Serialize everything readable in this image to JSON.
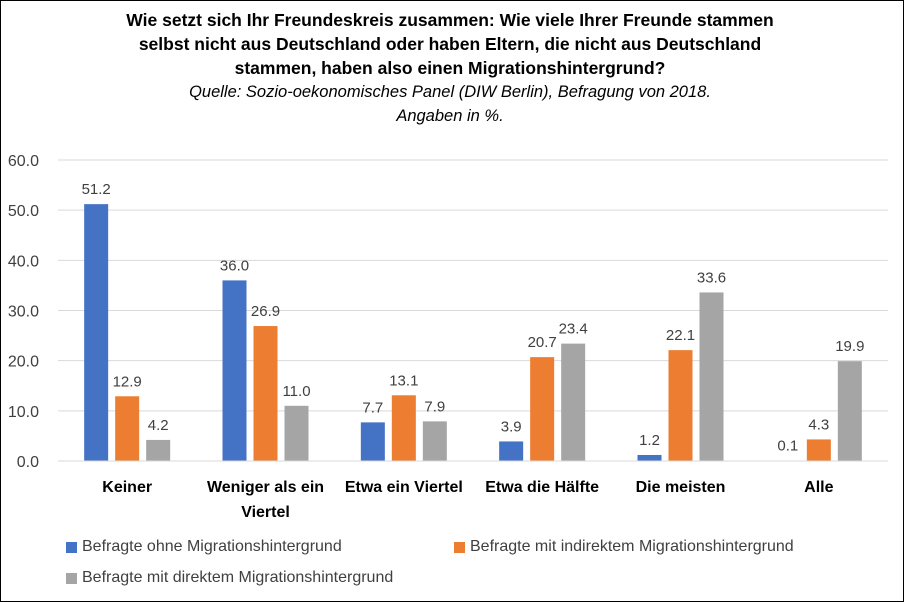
{
  "chart_data": {
    "type": "bar",
    "title": "Wie setzt sich Ihr Freundeskreis zusammen: Wie viele Ihrer Freunde stammen selbst nicht aus Deutschland oder haben Eltern, die nicht aus Deutschland stammen, haben also einen Migrationshintergrund?",
    "subtitle": "Quelle: Sozio-oekonomisches Panel (DIW Berlin), Befragung von 2018. Angaben in %.",
    "title_lines": [
      "Wie setzt sich Ihr Freundeskreis zusammen: Wie viele Ihrer Freunde stammen",
      "selbst nicht aus Deutschland oder haben Eltern, die nicht aus Deutschland",
      "stammen, haben also einen Migrationshintergrund?"
    ],
    "subtitle_lines": [
      "Quelle: Sozio-oekonomisches Panel (DIW Berlin), Befragung von 2018.",
      "Angaben in %."
    ],
    "categories": [
      "Keiner",
      "Weniger als ein Viertel",
      "Etwa ein Viertel",
      "Etwa die Hälfte",
      "Die meisten",
      "Alle"
    ],
    "category_label_lines": [
      [
        "Keiner"
      ],
      [
        "Weniger als ein",
        "Viertel"
      ],
      [
        "Etwa ein Viertel"
      ],
      [
        "Etwa die Hälfte"
      ],
      [
        "Die meisten"
      ],
      [
        "Alle"
      ]
    ],
    "series": [
      {
        "name": "Befragte ohne Migrationshintergrund",
        "color": "#4472C4",
        "values": [
          51.2,
          36.0,
          7.7,
          3.9,
          1.2,
          0.1
        ]
      },
      {
        "name": "Befragte mit indirektem Migrationshintergrund",
        "color": "#ED7D31",
        "values": [
          12.9,
          26.9,
          13.1,
          20.7,
          22.1,
          4.3
        ]
      },
      {
        "name": "Befragte mit direktem Migrationshintergrund",
        "color": "#A5A5A5",
        "values": [
          4.2,
          11.0,
          7.9,
          23.4,
          33.6,
          19.9
        ]
      }
    ],
    "ylim": [
      0,
      60
    ],
    "yticks": [
      "0.0",
      "10.0",
      "20.0",
      "30.0",
      "40.0",
      "50.0",
      "60.0"
    ],
    "xlabel": "",
    "ylabel": "",
    "grid": true,
    "legend_position": "bottom",
    "gridline_color": "#D9D9D9",
    "label_color": "#404040"
  }
}
